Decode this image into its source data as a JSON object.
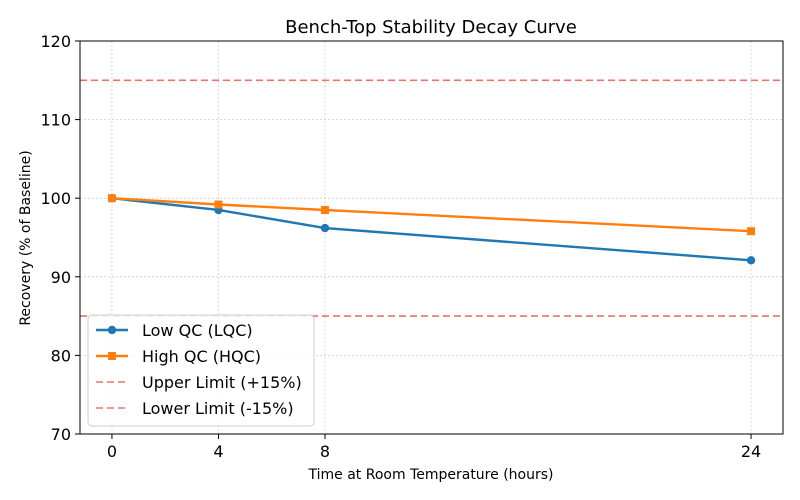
{
  "chart_data": {
    "type": "line",
    "title": "Bench-Top Stability Decay Curve",
    "xlabel": "Time at Room Temperature (hours)",
    "ylabel": "Recovery (% of Baseline)",
    "xlim": [
      -1.2,
      25.2
    ],
    "ylim": [
      70,
      120
    ],
    "xticks": [
      0,
      4,
      8,
      24
    ],
    "yticks": [
      70,
      80,
      90,
      100,
      110,
      120
    ],
    "grid": true,
    "legend_position": "lower-left",
    "x": [
      0,
      4,
      8,
      24
    ],
    "series": [
      {
        "name": "Low QC (LQC)",
        "values": [
          100.0,
          98.5,
          96.2,
          92.1
        ],
        "color": "#1f77b4",
        "marker": "circle"
      },
      {
        "name": "High QC (HQC)",
        "values": [
          100.0,
          99.2,
          98.5,
          95.8
        ],
        "color": "#ff7f0e",
        "marker": "square"
      }
    ],
    "reference_lines": [
      {
        "name": "Upper Limit (+15%)",
        "y": 115,
        "color": "#e8736b",
        "style": "dashed"
      },
      {
        "name": "Lower Limit (-15%)",
        "y": 85,
        "color": "#e8736b",
        "style": "dashed"
      }
    ]
  }
}
